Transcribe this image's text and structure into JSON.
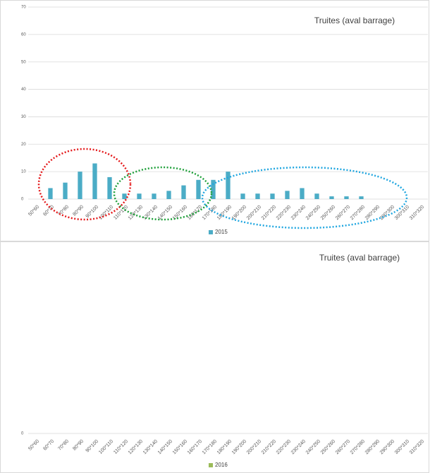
{
  "chart_data": [
    {
      "type": "bar",
      "title": "Truites (aval barrage)",
      "categories": [
        "50*60",
        "60*70",
        "70*80",
        "80*90",
        "90*100",
        "100*110",
        "110*120",
        "120*130",
        "130*140",
        "140*150",
        "150*160",
        "160*170",
        "170*180",
        "180*190",
        "190*200",
        "200*210",
        "210*220",
        "220*230",
        "230*240",
        "240*250",
        "250*260",
        "260*270",
        "270*280",
        "280*290",
        "290*300",
        "300*310",
        "310*320"
      ],
      "series": [
        {
          "name": "2015",
          "color": "#4bacc6",
          "values": [
            0,
            4,
            6,
            10,
            13,
            8,
            2,
            2,
            2,
            3,
            5,
            7,
            7,
            10,
            2,
            2,
            2,
            3,
            4,
            2,
            1,
            1,
            1,
            0,
            0,
            0,
            0
          ]
        }
      ],
      "ylim": [
        0,
        70
      ],
      "yticks": [
        0,
        10,
        20,
        30,
        40,
        50,
        60,
        70
      ],
      "grid": true,
      "legend": "bottom"
    },
    {
      "type": "bar",
      "title": "Truites (aval barrage)",
      "categories": [
        "50*60",
        "60*70",
        "70*80",
        "80*90",
        "90*100",
        "100*110",
        "110*120",
        "120*130",
        "130*140",
        "140*150",
        "150*160",
        "160*170",
        "170*180",
        "180*190",
        "190*200",
        "200*210",
        "210*220",
        "220*230",
        "230*240",
        "240*250",
        "250*260",
        "260*270",
        "270*280",
        "280*290",
        "290*300",
        "300*310",
        "310*320"
      ],
      "series": [
        {
          "name": "2016",
          "color": "#9bbb59",
          "values": [
            0,
            0,
            0,
            0,
            0,
            0,
            0,
            0,
            0,
            0,
            0,
            0,
            0,
            0,
            0,
            0,
            0,
            0,
            0,
            0,
            0,
            0,
            0,
            0,
            0,
            0,
            0
          ]
        }
      ],
      "ylim": [
        0,
        1
      ],
      "yticks": [
        0
      ],
      "grid": false,
      "legend": "bottom"
    }
  ]
}
